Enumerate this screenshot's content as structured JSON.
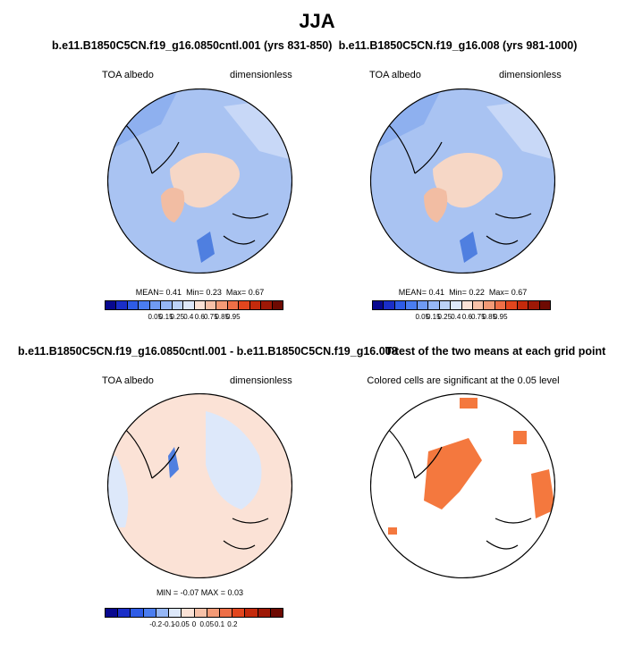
{
  "figure_title": "JJA",
  "chart_data": [
    {
      "type": "heatmap",
      "projection": "polar stereographic (north pole)",
      "title": "b.e11.B1850C5CN.f19_g16.0850cntl.001 (yrs 831-850)",
      "left_label": "TOA albedo",
      "right_label": "dimensionless",
      "stats": {
        "mean_label": "MEAN=",
        "mean": "0.41",
        "min_label": "Min=",
        "min": "0.23",
        "max_label": "Max=",
        "max": "0.67"
      },
      "colorbar": {
        "levels": [
          "0.05",
          "0.15",
          "0.25",
          "0.4",
          "0.6",
          "0.75",
          "0.85",
          "0.95"
        ],
        "colors": [
          "#08088f",
          "#1a2ec8",
          "#2e5ce6",
          "#4a7df0",
          "#6f9af2",
          "#95b6f5",
          "#bcd2f7",
          "#dde8fa",
          "#fbe2d6",
          "#f7c1a8",
          "#f39a76",
          "#ee6f47",
          "#e2461e",
          "#c42a0c",
          "#9e1806",
          "#6e0a02"
        ]
      }
    },
    {
      "type": "heatmap",
      "projection": "polar stereographic (north pole)",
      "title": "b.e11.B1850C5CN.f19_g16.008 (yrs 981-1000)",
      "left_label": "TOA albedo",
      "right_label": "dimensionless",
      "stats": {
        "mean_label": "MEAN=",
        "mean": "0.41",
        "min_label": "Min=",
        "min": "0.22",
        "max_label": "Max=",
        "max": "0.67"
      },
      "colorbar": {
        "levels": [
          "0.05",
          "0.15",
          "0.25",
          "0.4",
          "0.6",
          "0.75",
          "0.85",
          "0.95"
        ],
        "colors": [
          "#08088f",
          "#1a2ec8",
          "#2e5ce6",
          "#4a7df0",
          "#6f9af2",
          "#95b6f5",
          "#bcd2f7",
          "#dde8fa",
          "#fbe2d6",
          "#f7c1a8",
          "#f39a76",
          "#ee6f47",
          "#e2461e",
          "#c42a0c",
          "#9e1806",
          "#6e0a02"
        ]
      }
    },
    {
      "type": "heatmap",
      "projection": "polar stereographic (north pole)",
      "title": "b.e11.B1850C5CN.f19_g16.0850cntl.001 - b.e11.B1850C5CN.f19_g16.008",
      "left_label": "TOA albedo",
      "right_label": "dimensionless",
      "stats": {
        "min_label": "MIN =",
        "min": "-0.07",
        "max_label": "MAX =",
        "max": "0.03"
      },
      "colorbar": {
        "levels": [
          "-0.2",
          "-0.1",
          "-0.05",
          "0",
          "0.05",
          "0.1",
          "0.2"
        ],
        "colors": [
          "#08088f",
          "#1a2ec8",
          "#2e5ce6",
          "#4a7df0",
          "#95b6f5",
          "#dde8fa",
          "#fbe2d6",
          "#f7c1a8",
          "#f39a76",
          "#ee6f47",
          "#e2461e",
          "#c42a0c",
          "#9e1806",
          "#6e0a02"
        ]
      }
    },
    {
      "type": "heatmap",
      "projection": "polar stereographic (north pole)",
      "title": "T-test of the two means at each grid point",
      "subtitle": "Colored cells are significant at the 0.05 level",
      "significance_level": 0.05,
      "significant_color": "#f4783e"
    }
  ]
}
